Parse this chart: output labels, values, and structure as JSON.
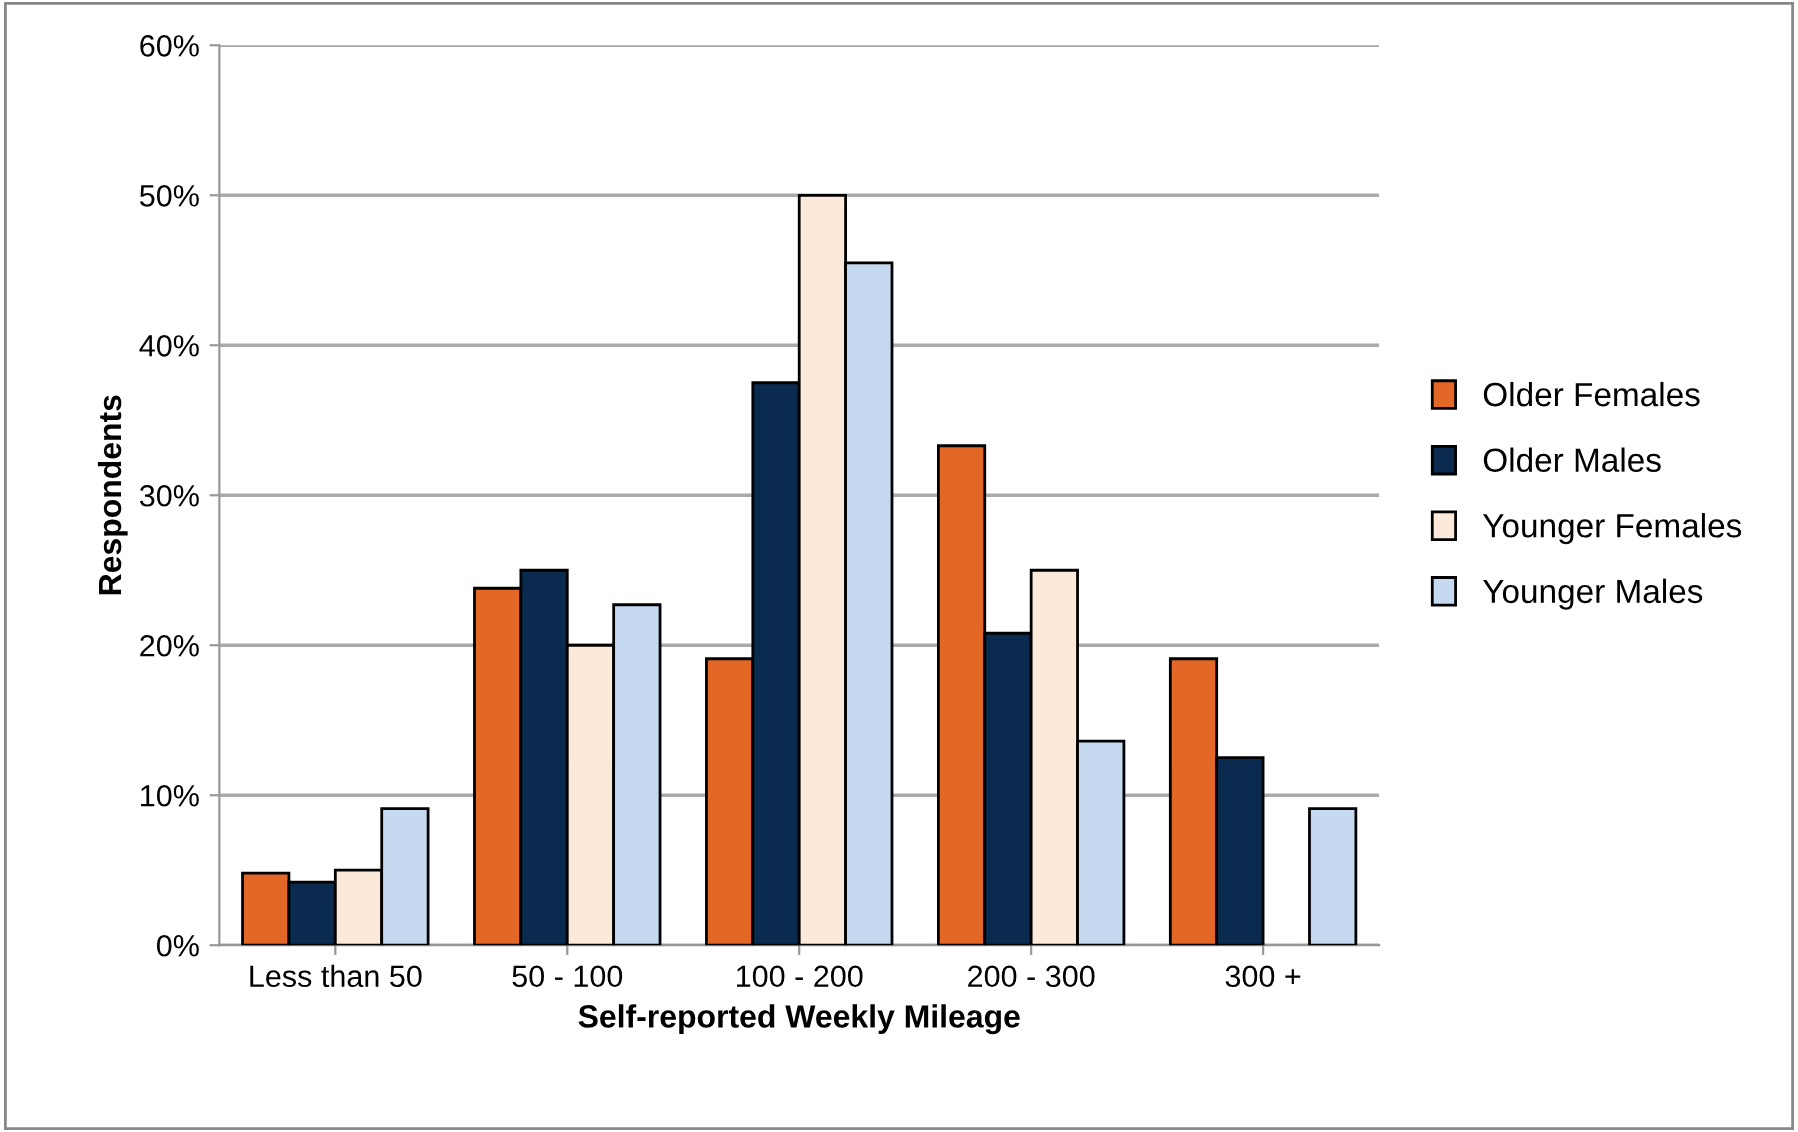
{
  "chart_data": {
    "type": "bar",
    "xlabel": "Self-reported Weekly Mileage",
    "ylabel": "Respondents",
    "categories": [
      "Less than 50",
      "50 - 100",
      "100 - 200",
      "200 - 300",
      "300 +"
    ],
    "series": [
      {
        "name": "Older Females",
        "color": "#e36726",
        "values": [
          4.8,
          23.8,
          19.1,
          33.3,
          19.1
        ]
      },
      {
        "name": "Older Males",
        "color": "#0a2a4f",
        "values": [
          4.2,
          25.0,
          37.5,
          20.8,
          12.5
        ]
      },
      {
        "name": "Younger Females",
        "color": "#fde9d9",
        "values": [
          5.0,
          20.0,
          50.0,
          25.0,
          null
        ]
      },
      {
        "name": "Younger Males",
        "color": "#c5d9f1",
        "values": [
          9.1,
          22.7,
          45.5,
          13.6,
          9.1
        ]
      }
    ],
    "ylim": [
      0,
      60
    ],
    "yticks": [
      {
        "value": 0,
        "label": "0%"
      },
      {
        "value": 10,
        "label": "10%"
      },
      {
        "value": 20,
        "label": "20%"
      },
      {
        "value": 30,
        "label": "30%"
      },
      {
        "value": 40,
        "label": "40%"
      },
      {
        "value": 50,
        "label": "50%"
      },
      {
        "value": 60,
        "label": "60%"
      }
    ],
    "grid": "y",
    "legend": "right"
  }
}
